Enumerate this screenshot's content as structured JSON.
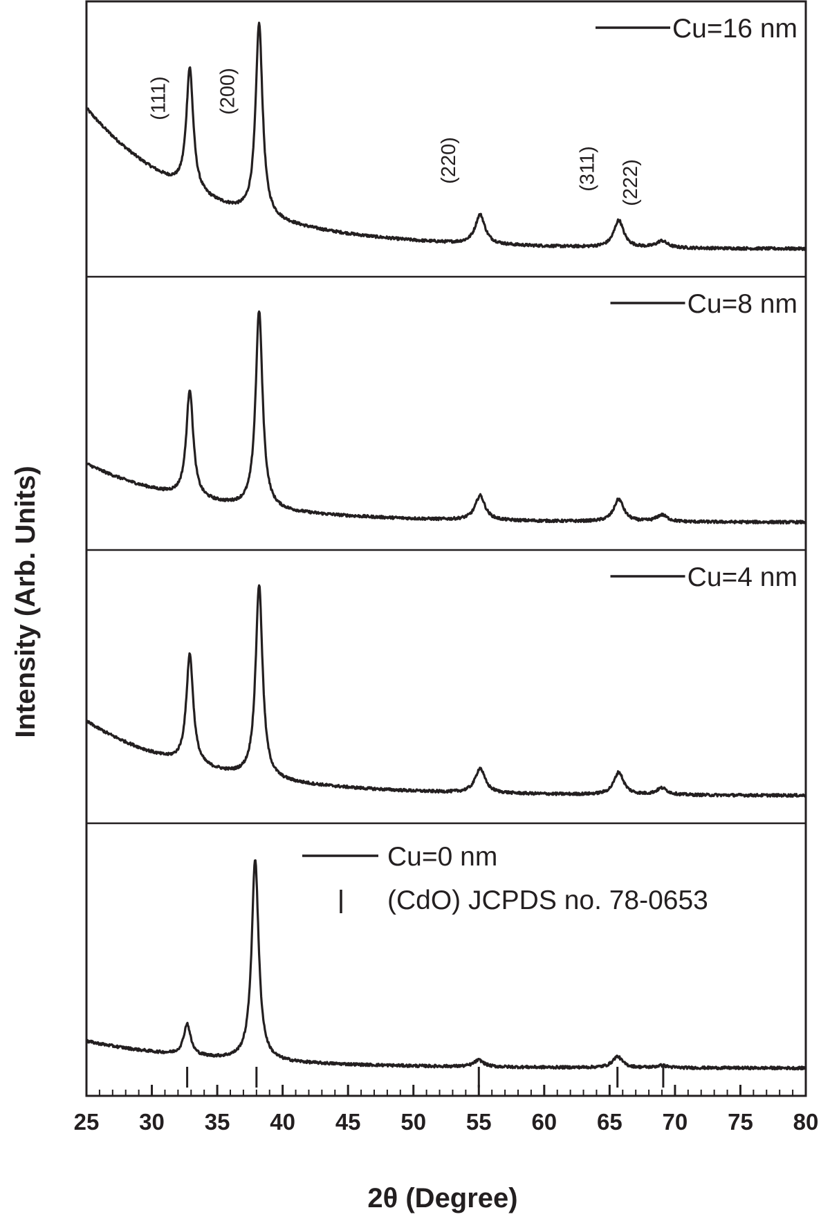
{
  "chart_data": {
    "type": "line",
    "layout": "stacked-panels",
    "xlabel": "2θ (Degree)",
    "ylabel": "Intensity (Arb. Units)",
    "xlim": [
      25,
      80
    ],
    "x_ticks": [
      25,
      30,
      35,
      40,
      45,
      50,
      55,
      60,
      65,
      70,
      75,
      80
    ],
    "x_tick_labels": [
      "25",
      "30",
      "35",
      "40",
      "45",
      "50",
      "55",
      "60",
      "65",
      "70",
      "75",
      "80"
    ],
    "y_ticks_shown": false,
    "grid": false,
    "line_color": "#231f20",
    "panels": [
      {
        "legend": "Cu=16 nm",
        "legend_placement": "top-right",
        "background": {
          "start": 0.62,
          "end": 0.0,
          "decay": 9
        },
        "peaks": [
          {
            "two_theta": 32.9,
            "height": 0.54,
            "width": 0.32
          },
          {
            "two_theta": 38.2,
            "height": 0.85,
            "width": 0.32
          },
          {
            "two_theta": 55.1,
            "height": 0.13,
            "width": 0.45
          },
          {
            "two_theta": 65.7,
            "height": 0.12,
            "width": 0.45
          },
          {
            "two_theta": 69.0,
            "height": 0.03,
            "width": 0.5
          }
        ],
        "annotations": [
          {
            "label": "(111)",
            "two_theta": 32.9
          },
          {
            "label": "(200)",
            "two_theta": 38.2
          },
          {
            "label": "(220)",
            "two_theta": 55.1
          },
          {
            "label": "(311)",
            "two_theta": 65.7
          },
          {
            "label": "(222)",
            "two_theta": 69.0
          }
        ]
      },
      {
        "legend": "Cu=8 nm",
        "legend_placement": "top-right",
        "background": {
          "start": 0.26,
          "end": 0.0,
          "decay": 9
        },
        "peaks": [
          {
            "two_theta": 32.9,
            "height": 0.48,
            "width": 0.32
          },
          {
            "two_theta": 38.2,
            "height": 0.88,
            "width": 0.32
          },
          {
            "two_theta": 55.1,
            "height": 0.11,
            "width": 0.45
          },
          {
            "two_theta": 65.7,
            "height": 0.1,
            "width": 0.45
          },
          {
            "two_theta": 69.0,
            "height": 0.03,
            "width": 0.5
          }
        ],
        "annotations": []
      },
      {
        "legend": "Cu=4 nm",
        "legend_placement": "top-right",
        "background": {
          "start": 0.33,
          "end": 0.0,
          "decay": 9
        },
        "peaks": [
          {
            "two_theta": 32.9,
            "height": 0.49,
            "width": 0.32
          },
          {
            "two_theta": 38.2,
            "height": 0.86,
            "width": 0.32
          },
          {
            "two_theta": 55.1,
            "height": 0.11,
            "width": 0.45
          },
          {
            "two_theta": 65.7,
            "height": 0.1,
            "width": 0.45
          },
          {
            "two_theta": 69.0,
            "height": 0.03,
            "width": 0.5
          }
        ],
        "annotations": []
      },
      {
        "legend": "Cu=0 nm",
        "legend_placement": "top-right",
        "reference_legend": "(CdO) JCPDS no. 78-0653",
        "background": {
          "start": 0.12,
          "end": 0.0,
          "decay": 10
        },
        "peaks": [
          {
            "two_theta": 32.7,
            "height": 0.14,
            "width": 0.32
          },
          {
            "two_theta": 37.9,
            "height": 0.9,
            "width": 0.32
          },
          {
            "two_theta": 55.0,
            "height": 0.03,
            "width": 0.45
          },
          {
            "two_theta": 65.6,
            "height": 0.05,
            "width": 0.45
          },
          {
            "two_theta": 69.0,
            "height": 0.01,
            "width": 0.5
          }
        ],
        "reference_lines_two_theta": [
          32.7,
          38.0,
          55.0,
          65.6,
          69.1
        ],
        "annotations": []
      }
    ]
  }
}
